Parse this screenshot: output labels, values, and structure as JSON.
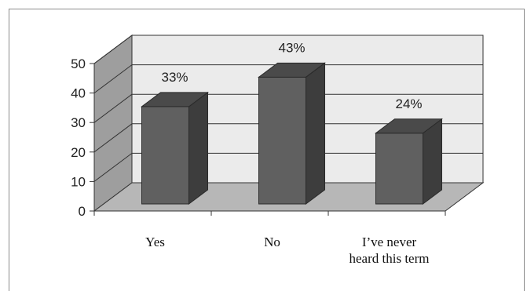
{
  "chart_data": {
    "type": "bar",
    "categories": [
      "Yes",
      "No",
      "I've never heard this term"
    ],
    "category_label_lines": [
      [
        "Yes"
      ],
      [
        "No"
      ],
      [
        "I’ve never",
        "heard this term"
      ]
    ],
    "values": [
      33,
      43,
      24
    ],
    "data_labels": [
      "33%",
      "43%",
      "24%"
    ],
    "ylim": [
      0,
      50
    ],
    "yticks": [
      0,
      10,
      20,
      30,
      40,
      50
    ],
    "grid": true,
    "style": "3d-column",
    "bar_color": "#606060",
    "wall_color": "#ebebeb",
    "floor_color": "#b7b7b7"
  }
}
